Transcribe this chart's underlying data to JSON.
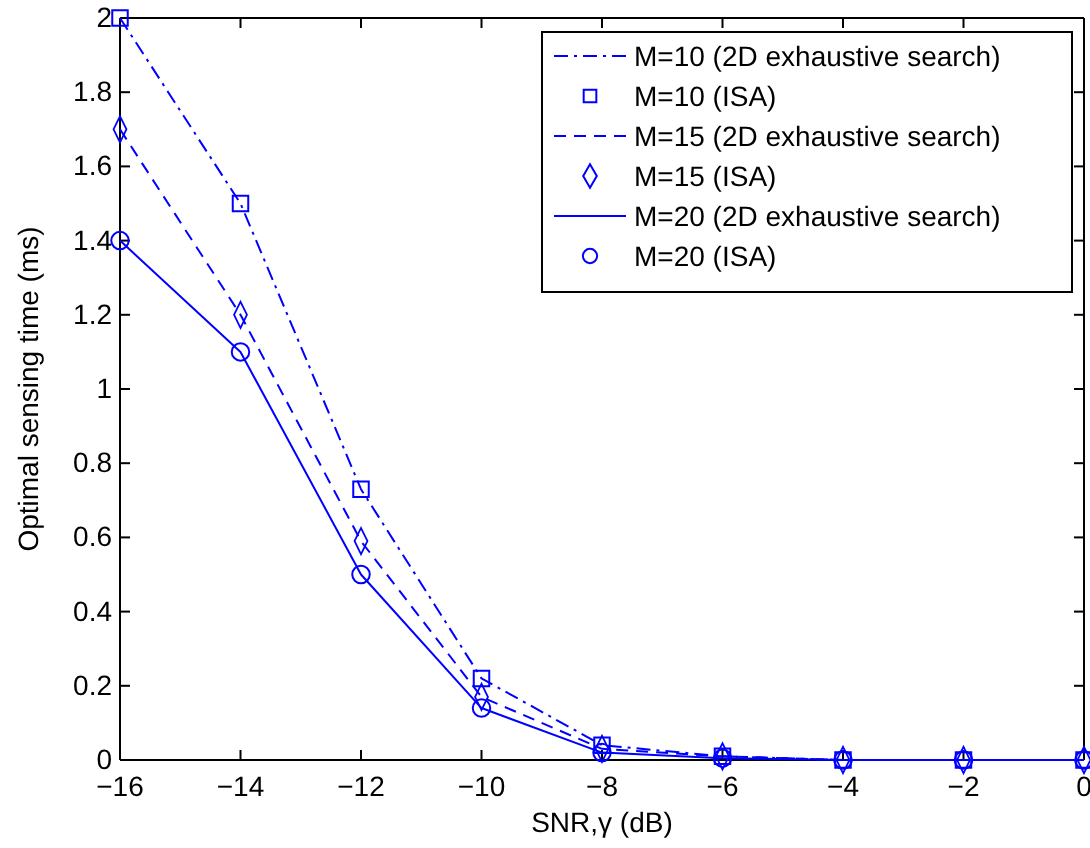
{
  "chart_data": {
    "type": "line",
    "xlabel": "SNR,γ (dB)",
    "ylabel": "Optimal sensing time (ms)",
    "x": [
      -16,
      -14,
      -12,
      -10,
      -8,
      -6,
      -4,
      -2,
      0
    ],
    "series": [
      {
        "name": "M=10 (2D exhaustive search)",
        "line_style": "dashdot",
        "color": "#0000ff",
        "values": [
          2.0,
          1.5,
          0.73,
          0.22,
          0.04,
          0.01,
          0,
          0,
          0
        ]
      },
      {
        "name": "M=10 (ISA)",
        "type": "scatter",
        "marker": "square",
        "color": "#0000ff",
        "values": [
          2.0,
          1.5,
          0.73,
          0.22,
          0.04,
          0.01,
          0,
          0,
          0
        ]
      },
      {
        "name": "M=15 (2D exhaustive search)",
        "line_style": "dashed",
        "color": "#0000ff",
        "values": [
          1.7,
          1.2,
          0.59,
          0.17,
          0.03,
          0.01,
          0,
          0,
          0
        ]
      },
      {
        "name": "M=15 (ISA)",
        "type": "scatter",
        "marker": "diamond",
        "color": "#0000ff",
        "values": [
          1.7,
          1.2,
          0.59,
          0.17,
          0.03,
          0.01,
          0,
          0,
          0
        ]
      },
      {
        "name": "M=20 (2D exhaustive search)",
        "line_style": "solid",
        "color": "#0000ff",
        "values": [
          1.4,
          1.1,
          0.5,
          0.14,
          0.02,
          0.005,
          0,
          0,
          0
        ]
      },
      {
        "name": "M=20 (ISA)",
        "type": "scatter",
        "marker": "circle",
        "color": "#0000ff",
        "values": [
          1.4,
          1.1,
          0.5,
          0.14,
          0.02,
          0.005,
          0,
          0,
          0
        ]
      }
    ],
    "xlim": [
      -16,
      0
    ],
    "xticks": [
      {
        "value": -16,
        "label": "−16"
      },
      {
        "value": -14,
        "label": "−14"
      },
      {
        "value": -12,
        "label": "−12"
      },
      {
        "value": -10,
        "label": "−10"
      },
      {
        "value": -8,
        "label": "−8"
      },
      {
        "value": -6,
        "label": "−6"
      },
      {
        "value": -4,
        "label": "−4"
      },
      {
        "value": -2,
        "label": "−2"
      },
      0
    ],
    "ylim": [
      0,
      2
    ],
    "yticks": [
      0,
      0.2,
      0.4,
      0.6,
      0.8,
      1,
      1.2,
      1.4,
      1.6,
      1.8,
      2
    ],
    "grid": false,
    "legend": "top right"
  }
}
